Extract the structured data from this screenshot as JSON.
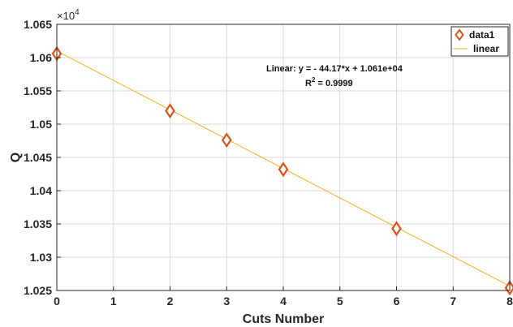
{
  "chart_data": {
    "type": "scatter",
    "xlabel": "Cuts Number",
    "ylabel": "Q",
    "xlim": [
      0,
      8
    ],
    "ylim": [
      10250,
      10650
    ],
    "y_exponent_label": "×10",
    "y_exponent_power": "4",
    "x_ticks": [
      "0",
      "1",
      "2",
      "3",
      "4",
      "5",
      "6",
      "7",
      "8"
    ],
    "y_ticks": [
      "1.025",
      "1.03",
      "1.035",
      "1.04",
      "1.045",
      "1.05",
      "1.055",
      "1.06",
      "1.065"
    ],
    "grid": true,
    "legend_position": "top-right",
    "series": [
      {
        "name": "data1",
        "kind": "markers",
        "marker": "diamond",
        "color": "#D95319",
        "x": [
          0,
          2,
          3,
          4,
          6,
          8
        ],
        "y": [
          10606,
          10520,
          10476,
          10432,
          10343,
          10254
        ]
      },
      {
        "name": "linear",
        "kind": "line",
        "color": "#EDB120",
        "slope": -44.17,
        "intercept": 10610
      }
    ],
    "annotation": {
      "equation": "Linear:  y = - 44.17*x + 1.061e+04",
      "r2_prefix": "R",
      "r2_power": "2",
      "r2_suffix": " = 0.9999"
    }
  }
}
